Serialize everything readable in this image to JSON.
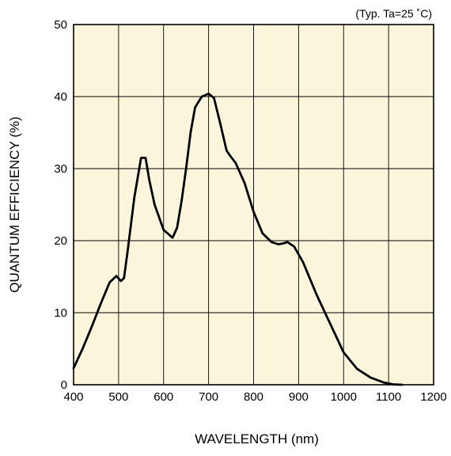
{
  "chart_data": {
    "type": "line",
    "title": "",
    "annotation": "(Typ. Ta=25 ˚C)",
    "xlabel": "WAVELENGTH (nm)",
    "ylabel": "QUANTUM EFFICIENCY (%)",
    "xlim": [
      400,
      1200
    ],
    "ylim": [
      0,
      50
    ],
    "xticks": [
      400,
      500,
      600,
      700,
      800,
      900,
      1000,
      1100,
      1200
    ],
    "yticks": [
      0,
      10,
      20,
      30,
      40,
      50
    ],
    "grid": true,
    "legend": "none",
    "background_color": "#fbf5dc",
    "line_color": "#000000",
    "series": [
      {
        "x": [
          400,
          420,
          440,
          460,
          480,
          495,
          505,
          512,
          520,
          535,
          550,
          560,
          568,
          580,
          600,
          620,
          630,
          640,
          650,
          660,
          670,
          685,
          700,
          712,
          725,
          740,
          750,
          760,
          780,
          800,
          820,
          840,
          855,
          865,
          875,
          890,
          910,
          940,
          970,
          1000,
          1030,
          1060,
          1090,
          1110,
          1130
        ],
        "y": [
          2.3,
          5.0,
          8.0,
          11.2,
          14.2,
          15.1,
          14.4,
          14.8,
          18.5,
          26.0,
          31.5,
          31.5,
          28.5,
          25.0,
          21.5,
          20.4,
          21.8,
          25.5,
          30.0,
          35.0,
          38.5,
          40.0,
          40.4,
          39.8,
          36.5,
          32.5,
          31.6,
          30.8,
          28.0,
          24.0,
          21.0,
          19.8,
          19.5,
          19.6,
          19.8,
          19.2,
          17.0,
          12.5,
          8.5,
          4.5,
          2.2,
          1.0,
          0.3,
          0.05,
          0.0
        ]
      }
    ]
  }
}
